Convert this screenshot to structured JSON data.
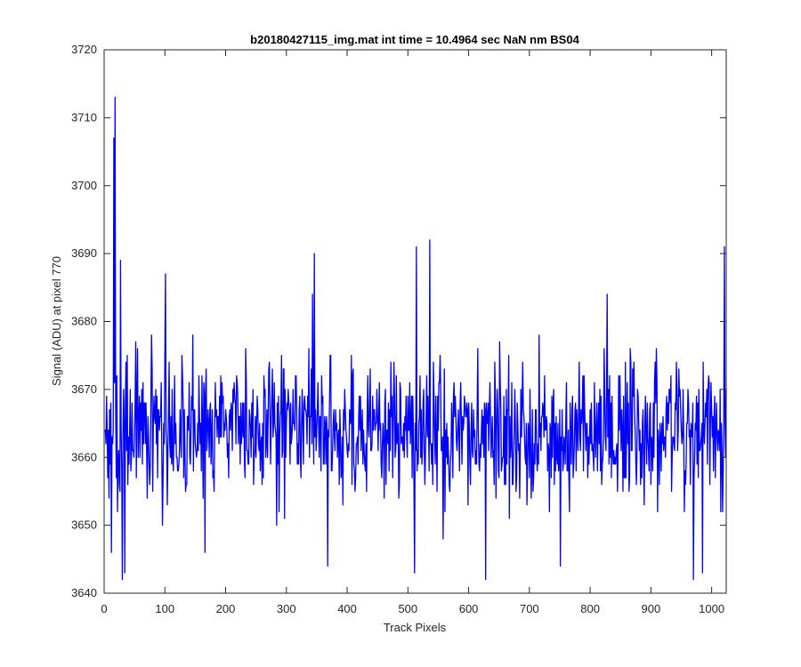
{
  "chart_data": {
    "type": "line",
    "title": "b20180427115_img.mat int time = 10.4964 sec  NaN nm BS04",
    "xlabel": "Track Pixels",
    "ylabel": "Signal (ADU) at pixel 770",
    "xlim": [
      0,
      1024
    ],
    "ylim": [
      3640,
      3720
    ],
    "xticks": [
      0,
      100,
      200,
      300,
      400,
      500,
      600,
      700,
      800,
      900,
      1000
    ],
    "yticks": [
      3640,
      3650,
      3660,
      3670,
      3680,
      3690,
      3700,
      3710,
      3720
    ],
    "grid": false,
    "series": [
      {
        "color": "#0000ff",
        "x_start": 1,
        "x_step": 1,
        "count": 1024,
        "summary": {
          "typical_range": [
            3654,
            3674
          ],
          "mean_approx": 3664,
          "min_approx": 3642,
          "max_approx": 3713
        },
        "key_points": [
          {
            "x": 1,
            "y": 3664
          },
          {
            "x": 8,
            "y": 3654
          },
          {
            "x": 12,
            "y": 3646
          },
          {
            "x": 16,
            "y": 3707
          },
          {
            "x": 18,
            "y": 3713
          },
          {
            "x": 22,
            "y": 3652
          },
          {
            "x": 27,
            "y": 3689
          },
          {
            "x": 30,
            "y": 3642
          },
          {
            "x": 34,
            "y": 3643
          },
          {
            "x": 96,
            "y": 3650
          },
          {
            "x": 101,
            "y": 3687
          },
          {
            "x": 166,
            "y": 3646
          },
          {
            "x": 343,
            "y": 3684
          },
          {
            "x": 346,
            "y": 3690
          },
          {
            "x": 368,
            "y": 3644
          },
          {
            "x": 511,
            "y": 3643
          },
          {
            "x": 514,
            "y": 3691
          },
          {
            "x": 536,
            "y": 3692
          },
          {
            "x": 558,
            "y": 3648
          },
          {
            "x": 628,
            "y": 3642
          },
          {
            "x": 751,
            "y": 3644
          },
          {
            "x": 828,
            "y": 3684
          },
          {
            "x": 970,
            "y": 3642
          },
          {
            "x": 985,
            "y": 3643
          },
          {
            "x": 1018,
            "y": 3652
          },
          {
            "x": 1021,
            "y": 3691
          },
          {
            "x": 1024,
            "y": 3670
          }
        ]
      }
    ]
  }
}
